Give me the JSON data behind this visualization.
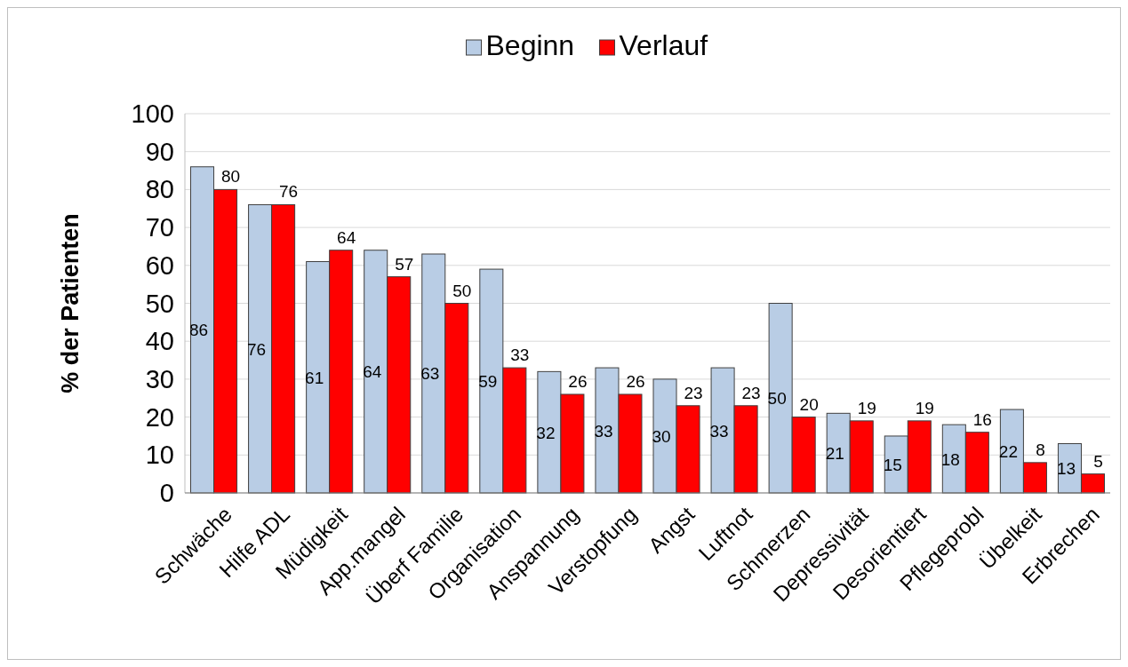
{
  "chart_data": {
    "type": "bar",
    "ylabel": "% der Patienten",
    "categories": [
      "Schwäche",
      "Hilfe ADL",
      "Müdigkeit",
      "App.mangel",
      "Überf Familie",
      "Organisation",
      "Anspannung",
      "Verstopfung",
      "Angst",
      "Luftnot",
      "Schmerzen",
      "Depressivität",
      "Desorientiert",
      "Pflegeprobl",
      "Übelkeit",
      "Erbrechen"
    ],
    "series": [
      {
        "name": "Beginn",
        "color": "#b9cde5",
        "values": [
          86,
          76,
          61,
          64,
          63,
          59,
          32,
          33,
          30,
          33,
          50,
          21,
          15,
          18,
          22,
          13
        ]
      },
      {
        "name": "Verlauf",
        "color": "#ff0000",
        "values": [
          80,
          76,
          64,
          57,
          50,
          33,
          26,
          26,
          23,
          23,
          20,
          19,
          19,
          16,
          8,
          5
        ]
      }
    ],
    "ylim": [
      0,
      100
    ],
    "yticks": [
      0,
      10,
      20,
      30,
      40,
      50,
      60,
      70,
      80,
      90,
      100
    ],
    "grid": "y",
    "legend": "top",
    "data_labels": true
  }
}
